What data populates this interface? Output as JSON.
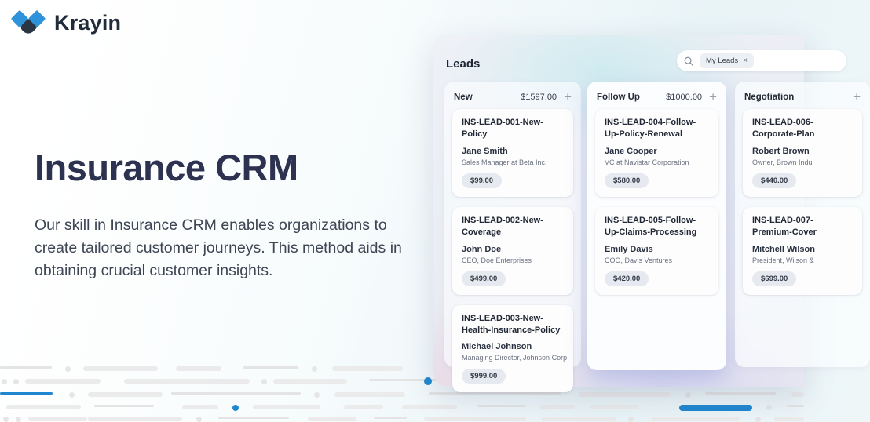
{
  "brand": {
    "name": "Krayin"
  },
  "hero": {
    "title": "Insurance CRM",
    "description": "Our skill in Insurance CRM enables organizations to create tailored customer journeys. This method aids in obtaining crucial customer insights."
  },
  "app": {
    "title": "Leads",
    "search": {
      "chip": "My Leads",
      "chip_close": "×"
    },
    "columns": [
      {
        "name": "New",
        "amount": "$1597.00",
        "add_label": "+",
        "cards": [
          {
            "title": "INS-LEAD-001-New-Policy",
            "person": "Jane Smith",
            "role": "Sales Manager at Beta Inc.",
            "value": "$99.00"
          },
          {
            "title": "INS-LEAD-002-New-Coverage",
            "person": "John Doe",
            "role": "CEO, Doe Enterprises",
            "value": "$499.00"
          },
          {
            "title": "INS-LEAD-003-New-Health-Insurance-Policy",
            "person": "Michael Johnson",
            "role": "Managing Director, Johnson Corp",
            "value": "$999.00"
          }
        ]
      },
      {
        "name": "Follow Up",
        "amount": "$1000.00",
        "add_label": "+",
        "cards": [
          {
            "title": "INS-LEAD-004-Follow-Up-Policy-Renewal",
            "person": "Jane Cooper",
            "role": "VC at Navistar Corporation",
            "value": "$580.00"
          },
          {
            "title": "INS-LEAD-005-Follow-Up-Claims-Processing",
            "person": "Emily Davis",
            "role": "COO, Davis Ventures",
            "value": "$420.00"
          }
        ]
      },
      {
        "name": "Negotiation",
        "amount": "",
        "add_label": "+",
        "cards": [
          {
            "title": "INS-LEAD-006-Corporate-Plan",
            "person": "Robert Brown",
            "role": "Owner, Brown Indu",
            "value": "$440.00"
          },
          {
            "title": "INS-LEAD-007-Premium-Cover",
            "person": "Mitchell Wilson",
            "role": "President, Wilson &",
            "value": "$699.00"
          }
        ]
      }
    ]
  },
  "colors": {
    "accent_blue": "#1e87d0",
    "logo_blue": "#2e93d8",
    "logo_dark": "#2b3644",
    "headline": "#2d3250"
  }
}
